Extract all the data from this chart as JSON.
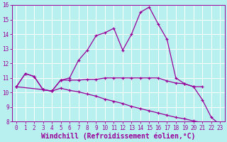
{
  "xlabel": "Windchill (Refroidissement éolien,°C)",
  "x": [
    0,
    1,
    2,
    3,
    4,
    5,
    6,
    7,
    8,
    9,
    10,
    11,
    12,
    13,
    14,
    15,
    16,
    17,
    18,
    19,
    20,
    21,
    22,
    23
  ],
  "line1": [
    10.4,
    11.3,
    11.1,
    10.2,
    10.1,
    10.85,
    10.85,
    10.85,
    10.9,
    10.9,
    11.0,
    11.0,
    11.0,
    11.0,
    11.0,
    11.0,
    11.0,
    10.8,
    10.65,
    10.6,
    10.4,
    10.4,
    null,
    null
  ],
  "line2": [
    10.4,
    11.3,
    11.1,
    10.2,
    10.1,
    10.85,
    11.0,
    12.2,
    12.9,
    13.9,
    14.1,
    14.4,
    12.9,
    14.0,
    15.5,
    15.85,
    14.7,
    13.65,
    11.0,
    10.6,
    10.4,
    9.5,
    8.3,
    7.8
  ],
  "line3": [
    10.4,
    null,
    null,
    10.2,
    10.1,
    10.3,
    10.15,
    10.05,
    9.9,
    9.75,
    9.55,
    9.4,
    9.25,
    9.05,
    8.9,
    8.75,
    8.6,
    8.45,
    8.3,
    8.2,
    8.05,
    7.95,
    7.85,
    7.75
  ],
  "color": "#990099",
  "bg_color": "#b8f0f0",
  "grid_color": "#ffffff",
  "ylim": [
    8,
    16
  ],
  "xlim": [
    -0.5,
    23.5
  ],
  "yticks": [
    8,
    9,
    10,
    11,
    12,
    13,
    14,
    15,
    16
  ],
  "xticks": [
    0,
    1,
    2,
    3,
    4,
    5,
    6,
    7,
    8,
    9,
    10,
    11,
    12,
    13,
    14,
    15,
    16,
    17,
    18,
    19,
    20,
    21,
    22,
    23
  ],
  "tick_fontsize": 5.5,
  "xlabel_fontsize": 7.0,
  "marker": "+"
}
